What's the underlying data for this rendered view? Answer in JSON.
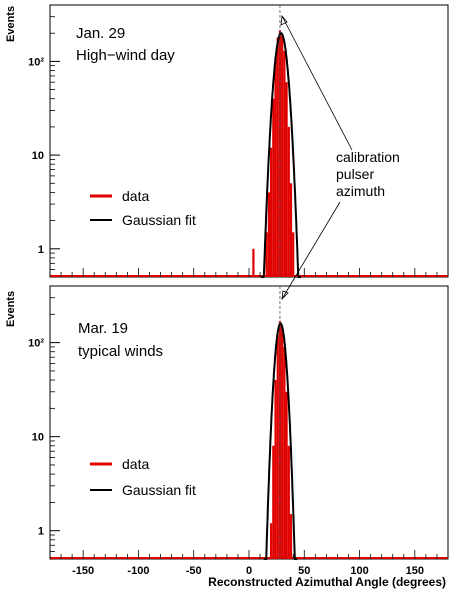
{
  "chart_data": [
    {
      "type": "bar",
      "panel": "top",
      "annotation_lines": [
        "Jan. 29",
        "High−wind day"
      ],
      "ylabel": "Events",
      "yscale": "log",
      "ylim": [
        0.5,
        400
      ],
      "xlim": [
        -180,
        180
      ],
      "y_ticks": [
        {
          "value": 1,
          "label": "1"
        },
        {
          "value": 10,
          "label": "10"
        },
        {
          "value": 100,
          "label": "10²"
        }
      ],
      "legend": {
        "position": "left-lower",
        "entries": [
          {
            "label": "data",
            "color": "#e00000"
          },
          {
            "label": "Gaussian fit",
            "color": "#000000"
          }
        ]
      },
      "bin_width": 2,
      "data_bins": [
        {
          "x": 4,
          "y": 1
        },
        {
          "x": 16,
          "y": 1.5
        },
        {
          "x": 18,
          "y": 4
        },
        {
          "x": 20,
          "y": 12
        },
        {
          "x": 22,
          "y": 40
        },
        {
          "x": 24,
          "y": 110
        },
        {
          "x": 26,
          "y": 180
        },
        {
          "x": 28,
          "y": 215
        },
        {
          "x": 30,
          "y": 190
        },
        {
          "x": 32,
          "y": 130
        },
        {
          "x": 34,
          "y": 60
        },
        {
          "x": 36,
          "y": 20
        },
        {
          "x": 38,
          "y": 5
        },
        {
          "x": 40,
          "y": 1.5
        }
      ],
      "fit": {
        "mean": 29,
        "sigma": 4.5,
        "amplitude": 200
      },
      "calibration_azimuth": 28
    },
    {
      "type": "bar",
      "panel": "bottom",
      "annotation_lines": [
        "Mar. 19",
        "typical winds"
      ],
      "ylabel": "Events",
      "xlabel": "Reconstructed Azimuthal Angle (degrees)",
      "yscale": "log",
      "ylim": [
        0.5,
        400
      ],
      "xlim": [
        -180,
        180
      ],
      "x_ticks": [
        -150,
        -100,
        -50,
        0,
        50,
        100,
        150
      ],
      "y_ticks": [
        {
          "value": 1,
          "label": "1"
        },
        {
          "value": 10,
          "label": "10"
        },
        {
          "value": 100,
          "label": "10²"
        }
      ],
      "legend": {
        "position": "left-lower",
        "entries": [
          {
            "label": "data",
            "color": "#e00000"
          },
          {
            "label": "Gaussian fit",
            "color": "#000000"
          }
        ]
      },
      "bin_width": 2,
      "data_bins": [
        {
          "x": 20,
          "y": 1.2
        },
        {
          "x": 22,
          "y": 8
        },
        {
          "x": 24,
          "y": 40
        },
        {
          "x": 26,
          "y": 120
        },
        {
          "x": 28,
          "y": 170
        },
        {
          "x": 30,
          "y": 150
        },
        {
          "x": 32,
          "y": 90
        },
        {
          "x": 34,
          "y": 30
        },
        {
          "x": 36,
          "y": 8
        },
        {
          "x": 38,
          "y": 1.5
        }
      ],
      "fit": {
        "mean": 28.5,
        "sigma": 3.8,
        "amplitude": 160
      },
      "calibration_azimuth": 28
    }
  ],
  "callout": {
    "lines": [
      "calibration",
      "pulser",
      "azimuth"
    ]
  }
}
